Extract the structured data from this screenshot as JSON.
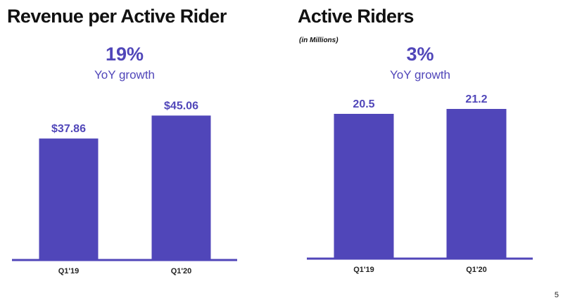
{
  "page_number": "5",
  "colors": {
    "bar": "#5046b9",
    "axis": "#5046b9",
    "text": "#111111"
  },
  "chart_data": [
    {
      "type": "bar",
      "title": "Revenue per Active Rider",
      "subtitle": "",
      "growth_value": "19%",
      "growth_label": "YoY growth",
      "categories": [
        "Q1'19",
        "Q1'20"
      ],
      "values": [
        37.86,
        45.06
      ],
      "value_labels": [
        "$37.86",
        "$45.06"
      ],
      "xlabel": "",
      "ylabel": "",
      "ylim": [
        0,
        50
      ],
      "grid": false,
      "legend": "none"
    },
    {
      "type": "bar",
      "title": "Active Riders",
      "subtitle": "(in Millions)",
      "growth_value": "3%",
      "growth_label": "YoY growth",
      "categories": [
        "Q1'19",
        "Q1'20"
      ],
      "values": [
        20.5,
        21.2
      ],
      "value_labels": [
        "20.5",
        "21.2"
      ],
      "xlabel": "",
      "ylabel": "",
      "ylim": [
        0,
        22.5
      ],
      "grid": false,
      "legend": "none"
    }
  ]
}
